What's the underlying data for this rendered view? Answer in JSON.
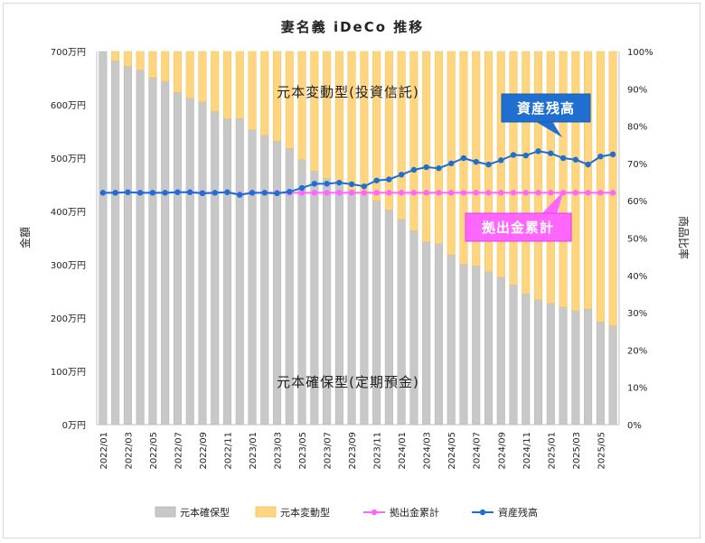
{
  "chart_data": {
    "type": "bar",
    "title": "妻名義 iDeCo 推移",
    "ylabel_left": "金額",
    "ylabel_right": "商品比率",
    "left_axis": {
      "min": 0,
      "max": 700,
      "step": 100,
      "tick_suffix": "万円"
    },
    "right_axis": {
      "min": 0,
      "max": 100,
      "step": 10,
      "tick_suffix": "%"
    },
    "grid": false,
    "legend_position": "bottom",
    "categories": [
      "2022/01",
      "2022/02",
      "2022/03",
      "2022/04",
      "2022/05",
      "2022/06",
      "2022/07",
      "2022/08",
      "2022/09",
      "2022/10",
      "2022/11",
      "2022/12",
      "2023/01",
      "2023/02",
      "2023/03",
      "2023/04",
      "2023/05",
      "2023/06",
      "2023/07",
      "2023/08",
      "2023/09",
      "2023/10",
      "2023/11",
      "2023/12",
      "2024/01",
      "2024/02",
      "2024/03",
      "2024/04",
      "2024/05",
      "2024/06",
      "2024/07",
      "2024/08",
      "2024/09",
      "2024/10",
      "2024/11",
      "2024/12",
      "2025/01",
      "2025/02",
      "2025/03",
      "2025/04",
      "2025/05",
      "2025/06"
    ],
    "x_tick_labels": [
      "2022/01",
      "2022/03",
      "2022/05",
      "2022/07",
      "2022/09",
      "2022/11",
      "2023/01",
      "2023/03",
      "2023/05",
      "2023/07",
      "2023/09",
      "2023/11",
      "2024/01",
      "2024/03",
      "2024/05",
      "2024/07",
      "2024/09",
      "2024/11",
      "2025/01",
      "2025/03",
      "2025/05"
    ],
    "series": [
      {
        "name": "元本確保型",
        "kind": "bar",
        "axis": "right",
        "color": "#c8c8c8",
        "values": [
          100,
          97.5,
          96,
          95,
          93,
          92,
          89,
          87.5,
          86.5,
          84,
          82,
          82,
          79,
          77.5,
          76,
          74,
          71,
          68,
          66,
          64.5,
          63,
          61.5,
          60,
          57.5,
          55,
          52,
          49,
          48.5,
          45.5,
          43,
          42.5,
          41,
          39.5,
          37.5,
          35,
          33.5,
          32.5,
          31.5,
          30.5,
          31,
          27.5,
          26.5
        ]
      },
      {
        "name": "元本変動型",
        "kind": "bar",
        "axis": "right",
        "color": "#ffd580",
        "values": [
          0,
          2.5,
          4,
          5,
          7,
          8,
          11,
          12.5,
          13.5,
          16,
          18,
          18,
          21,
          22.5,
          24,
          26,
          29,
          32,
          34,
          35.5,
          37,
          38.5,
          40,
          42.5,
          45,
          48,
          51,
          51.5,
          54.5,
          57,
          57.5,
          59,
          60.5,
          62.5,
          65,
          66.5,
          67.5,
          68.5,
          69.5,
          69,
          72.5,
          73.5
        ]
      },
      {
        "name": "拠出金累計",
        "kind": "line",
        "axis": "left",
        "color": "#ff66ff",
        "values": [
          435,
          435,
          436,
          435,
          435,
          435,
          436,
          436,
          435,
          435,
          436,
          432,
          435,
          435,
          435,
          435,
          435,
          435,
          435,
          435,
          435,
          435,
          435,
          435,
          435,
          435,
          435,
          435,
          435,
          435,
          435,
          435,
          435,
          435,
          435,
          435,
          435,
          435,
          435,
          435,
          435,
          435
        ]
      },
      {
        "name": "資産残高",
        "kind": "line",
        "axis": "left",
        "color": "#1f6fd1",
        "values": [
          435,
          435,
          436,
          435,
          435,
          435,
          436,
          436,
          434,
          435,
          436,
          431,
          435,
          435,
          434,
          437,
          444,
          452,
          452,
          454,
          451,
          447,
          458,
          460,
          469,
          478,
          483,
          481,
          490,
          500,
          493,
          488,
          496,
          506,
          505,
          513,
          509,
          500,
          497,
          488,
          503,
          507
        ]
      }
    ]
  },
  "annotations": {
    "upper_region_label": "元本変動型(投資信託)",
    "lower_region_label": "元本確保型(定期預金)",
    "callout_asset": "資産残高",
    "callout_contrib": "拠出金累計"
  }
}
